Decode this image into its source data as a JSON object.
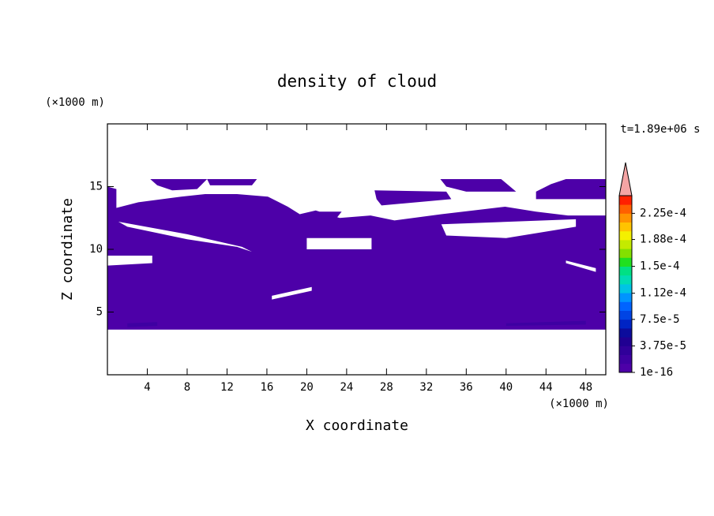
{
  "chart_data": {
    "type": "filled-contour",
    "title": "density of cloud",
    "time_label": "t=1.89e+06 s",
    "xlabel": "X coordinate",
    "ylabel": "Z coordinate",
    "x_unit": "(×1000 m)",
    "y_unit": "(×1000 m)",
    "xlim": [
      0,
      50
    ],
    "ylim": [
      0,
      20
    ],
    "xticks": [
      4,
      8,
      12,
      16,
      20,
      24,
      28,
      32,
      36,
      40,
      44,
      48
    ],
    "yticks": [
      5,
      10,
      15
    ],
    "colorbar": {
      "clim": [
        1e-16,
        0.00025
      ],
      "colors": [
        "#4d00a8",
        "#3e00a2",
        "#30009a",
        "#200092",
        "#0c0c9c",
        "#0024c4",
        "#0044e4",
        "#0064ff",
        "#0094ff",
        "#00c4e4",
        "#00dcb4",
        "#00e084",
        "#20e020",
        "#84e000",
        "#c4ea00",
        "#f4f000",
        "#ffc400",
        "#ff9400",
        "#ff6000",
        "#ff2000"
      ],
      "extend_color": "#f4a4a4",
      "ticks": [
        1e-16,
        {
          "value": 3.75e-05,
          "label": "3.75e-5"
        },
        {
          "value": 7.5e-05,
          "label": "7.5e-5"
        },
        {
          "value": 0.000112,
          "label": "1.12e-4"
        },
        {
          "value": 0.00015,
          "label": "1.5e-4"
        },
        {
          "value": 0.000188,
          "label": "1.88e-4"
        },
        {
          "value": 0.000225,
          "label": "2.25e-4"
        }
      ]
    },
    "regions": [
      {
        "level": 0,
        "x": [
          0,
          50,
          50,
          46.2,
          43,
          39.9,
          36.7,
          33.5,
          28.8,
          26.4,
          23.3,
          20.9,
          19.3,
          18.1,
          16.1,
          13,
          9.8,
          7.4,
          3.1,
          0.9,
          0.9,
          0
        ],
        "z": [
          3.6,
          3.6,
          12.7,
          12.7,
          13,
          13.4,
          13.1,
          12.8,
          12.3,
          12.7,
          12.5,
          13.1,
          12.8,
          13.4,
          14.2,
          14.4,
          14.4,
          14.2,
          13.75,
          13.3,
          14.8,
          15
        ]
      },
      {
        "level": null,
        "x": [
          1.1,
          8,
          13.5,
          14.5,
          13,
          8,
          2
        ],
        "z": [
          12.2,
          11.2,
          10.2,
          9.8,
          10.2,
          10.8,
          11.8
        ]
      },
      {
        "level": null,
        "x": [
          20,
          26.5,
          26.5,
          20
        ],
        "z": [
          10.9,
          10.9,
          10,
          10
        ]
      },
      {
        "level": null,
        "x": [
          33.5,
          47,
          47,
          40,
          34
        ],
        "z": [
          12,
          12.4,
          11.8,
          10.9,
          11.1
        ]
      },
      {
        "level": null,
        "x": [
          0,
          4.5,
          4.5,
          0
        ],
        "z": [
          9.5,
          9.5,
          8.9,
          8.7
        ]
      },
      {
        "level": null,
        "x": [
          16.5,
          20.5,
          20.5,
          16.5
        ],
        "z": [
          6.3,
          7,
          6.7,
          6
        ]
      },
      {
        "level": null,
        "x": [
          46,
          49,
          49,
          46
        ],
        "z": [
          8.9,
          8.2,
          8.5,
          9.1
        ]
      },
      {
        "level": 0,
        "x": [
          4.3,
          10,
          9,
          6.5,
          5
        ],
        "z": [
          15.6,
          15.6,
          14.8,
          14.7,
          15.1
        ]
      },
      {
        "level": 0,
        "x": [
          10,
          15,
          14.5,
          10.3
        ],
        "z": [
          15.6,
          15.6,
          15.1,
          15.1
        ]
      },
      {
        "level": 0,
        "x": [
          26.8,
          34,
          34.5,
          27.5,
          27
        ],
        "z": [
          14.7,
          14.6,
          14,
          13.5,
          14
        ]
      },
      {
        "level": 0,
        "x": [
          33.4,
          39.5,
          41,
          36,
          34
        ],
        "z": [
          15.6,
          15.6,
          14.6,
          14.6,
          15
        ]
      },
      {
        "level": 0,
        "x": [
          43,
          44.5,
          46,
          50,
          50,
          43
        ],
        "z": [
          14.6,
          15.2,
          15.6,
          15.6,
          14,
          14
        ]
      },
      {
        "level": 0,
        "x": [
          21.3,
          23.5,
          23,
          21.5
        ],
        "z": [
          13,
          13,
          12.5,
          12.5
        ]
      },
      {
        "level": 1,
        "x": [
          2,
          5,
          5,
          2
        ],
        "z": [
          4.1,
          4.2,
          3.9,
          3.8
        ]
      },
      {
        "level": 1,
        "x": [
          40,
          48,
          48,
          40
        ],
        "z": [
          4.1,
          4.3,
          4,
          3.9
        ]
      }
    ]
  }
}
